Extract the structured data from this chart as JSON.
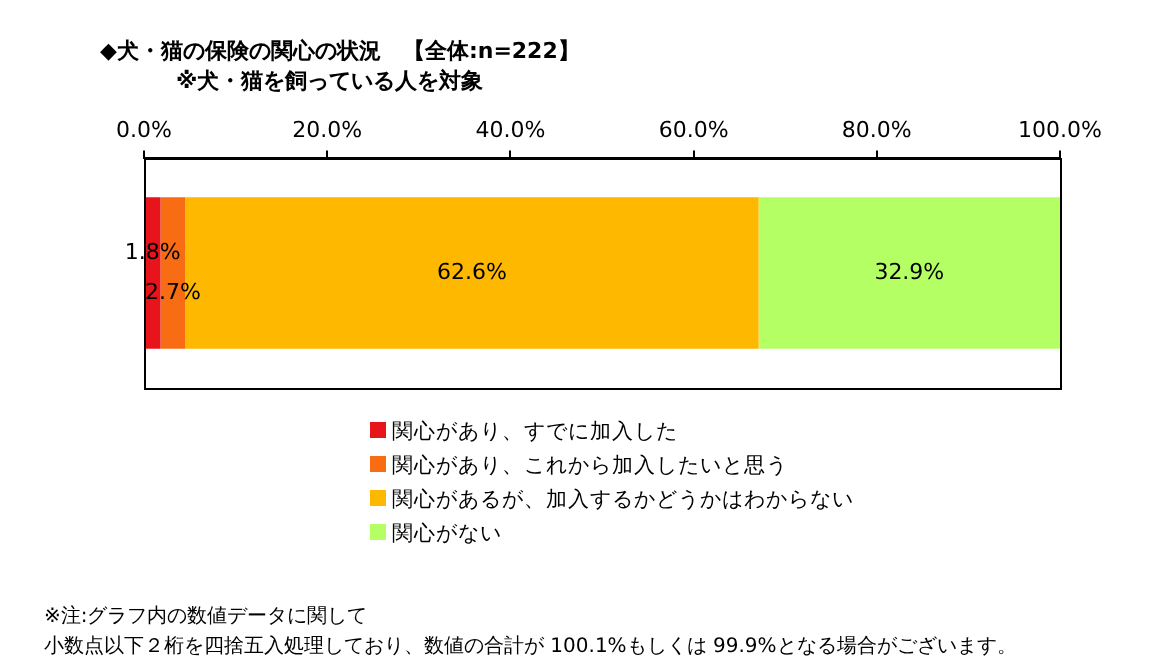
{
  "chart_data": {
    "type": "bar",
    "orientation": "horizontal",
    "stacked": true,
    "title": "◆犬・猫の保険の関心の状況　【全体:n=222】",
    "subtitle": "※犬・猫を飼っている人を対象",
    "categories": [
      null
    ],
    "series": [
      {
        "name": "関心があり、すでに加入した",
        "color": "#e8141c",
        "values": [
          1.8
        ],
        "value_labels": [
          "1.8%"
        ]
      },
      {
        "name": "関心があり、これから加入したいと思う",
        "color": "#f86c14",
        "values": [
          2.7
        ],
        "value_labels": [
          "2.7%"
        ]
      },
      {
        "name": "関心があるが、加入するかどうかはわからない",
        "color": "#ffb800",
        "values": [
          62.6
        ],
        "value_labels": [
          "62.6%"
        ]
      },
      {
        "name": "関心がない",
        "color": "#b4ff64",
        "values": [
          32.9
        ],
        "value_labels": [
          "32.9%"
        ]
      }
    ],
    "xlim": [
      0,
      100
    ],
    "xticks": [
      {
        "value": 0,
        "label": "0.0%"
      },
      {
        "value": 20,
        "label": "20.0%"
      },
      {
        "value": 40,
        "label": "40.0%"
      },
      {
        "value": 60,
        "label": "60.0%"
      },
      {
        "value": 80,
        "label": "80.0%"
      },
      {
        "value": 100,
        "label": "100.0%"
      }
    ],
    "legend": "bottom",
    "annotations": [
      "※注:グラフ内の数値データに関して",
      "小数点以下２桁を四捨五入処理しており、数値の合計が 100.1%もしくは 99.9%となる場合がございます。"
    ]
  }
}
